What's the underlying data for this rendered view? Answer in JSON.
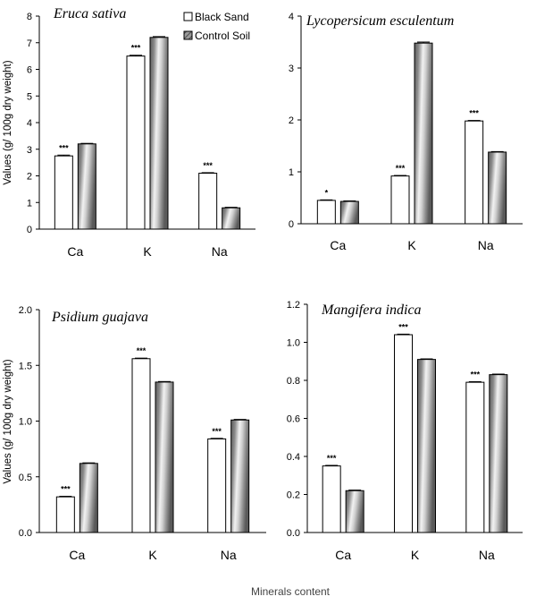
{
  "figure": {
    "y_axis_label": "Values (g/ 100g dry weight)",
    "x_axis_label": "Minerals content",
    "legend": [
      {
        "label": "Black Sand",
        "style": "white"
      },
      {
        "label": "Control Soil",
        "style": "hatched"
      }
    ]
  },
  "chart_data": [
    {
      "type": "bar",
      "title": "Eruca sativa",
      "categories": [
        "Ca",
        "K",
        "Na"
      ],
      "series": [
        {
          "name": "Black Sand",
          "values": [
            2.75,
            6.5,
            2.1
          ],
          "errors": [
            0.03,
            0.03,
            0.02
          ]
        },
        {
          "name": "Control Soil",
          "values": [
            3.2,
            7.2,
            0.8
          ],
          "errors": [
            0.02,
            0.03,
            0.02
          ]
        }
      ],
      "significance": [
        "***",
        "***",
        "***"
      ],
      "ylim": [
        0,
        8
      ],
      "yticks": [
        "0",
        "1",
        "2",
        "3",
        "4",
        "5",
        "6",
        "7",
        "8"
      ],
      "legend_position": "top-right"
    },
    {
      "type": "bar",
      "title": "Lycopersicum esculentum",
      "categories": [
        "Ca",
        "K",
        "Na"
      ],
      "series": [
        {
          "name": "Black Sand",
          "values": [
            0.45,
            0.92,
            1.98
          ],
          "errors": [
            0.01,
            0.01,
            0.01
          ]
        },
        {
          "name": "Control Soil",
          "values": [
            0.43,
            3.48,
            1.38
          ],
          "errors": [
            0.01,
            0.02,
            0.01
          ]
        }
      ],
      "significance": [
        "*",
        "***",
        "***"
      ],
      "ylim": [
        0,
        4
      ],
      "yticks": [
        "0",
        "1",
        "2",
        "3",
        "4"
      ]
    },
    {
      "type": "bar",
      "title": "Psidium guajava",
      "categories": [
        "Ca",
        "K",
        "Na"
      ],
      "series": [
        {
          "name": "Black Sand",
          "values": [
            0.32,
            1.56,
            0.84
          ],
          "errors": [
            0.005,
            0.005,
            0.005
          ]
        },
        {
          "name": "Control Soil",
          "values": [
            0.62,
            1.35,
            1.01
          ],
          "errors": [
            0.005,
            0.005,
            0.005
          ]
        }
      ],
      "significance": [
        "***",
        "***",
        "***"
      ],
      "ylim": [
        0,
        2
      ],
      "yticks": [
        "0.0",
        "0.5",
        "1.0",
        "1.5",
        "2.0"
      ]
    },
    {
      "type": "bar",
      "title": "Mangifera indica",
      "categories": [
        "Ca",
        "K",
        "Na"
      ],
      "series": [
        {
          "name": "Black Sand",
          "values": [
            0.35,
            1.04,
            0.79
          ],
          "errors": [
            0.003,
            0.003,
            0.003
          ]
        },
        {
          "name": "Control Soil",
          "values": [
            0.22,
            0.91,
            0.83
          ],
          "errors": [
            0.003,
            0.003,
            0.003
          ]
        }
      ],
      "significance": [
        "***",
        "***",
        "***"
      ],
      "ylim": [
        0,
        1.2
      ],
      "yticks": [
        "0.0",
        "0.2",
        "0.4",
        "0.6",
        "0.8",
        "1.0",
        "1.2"
      ]
    }
  ]
}
